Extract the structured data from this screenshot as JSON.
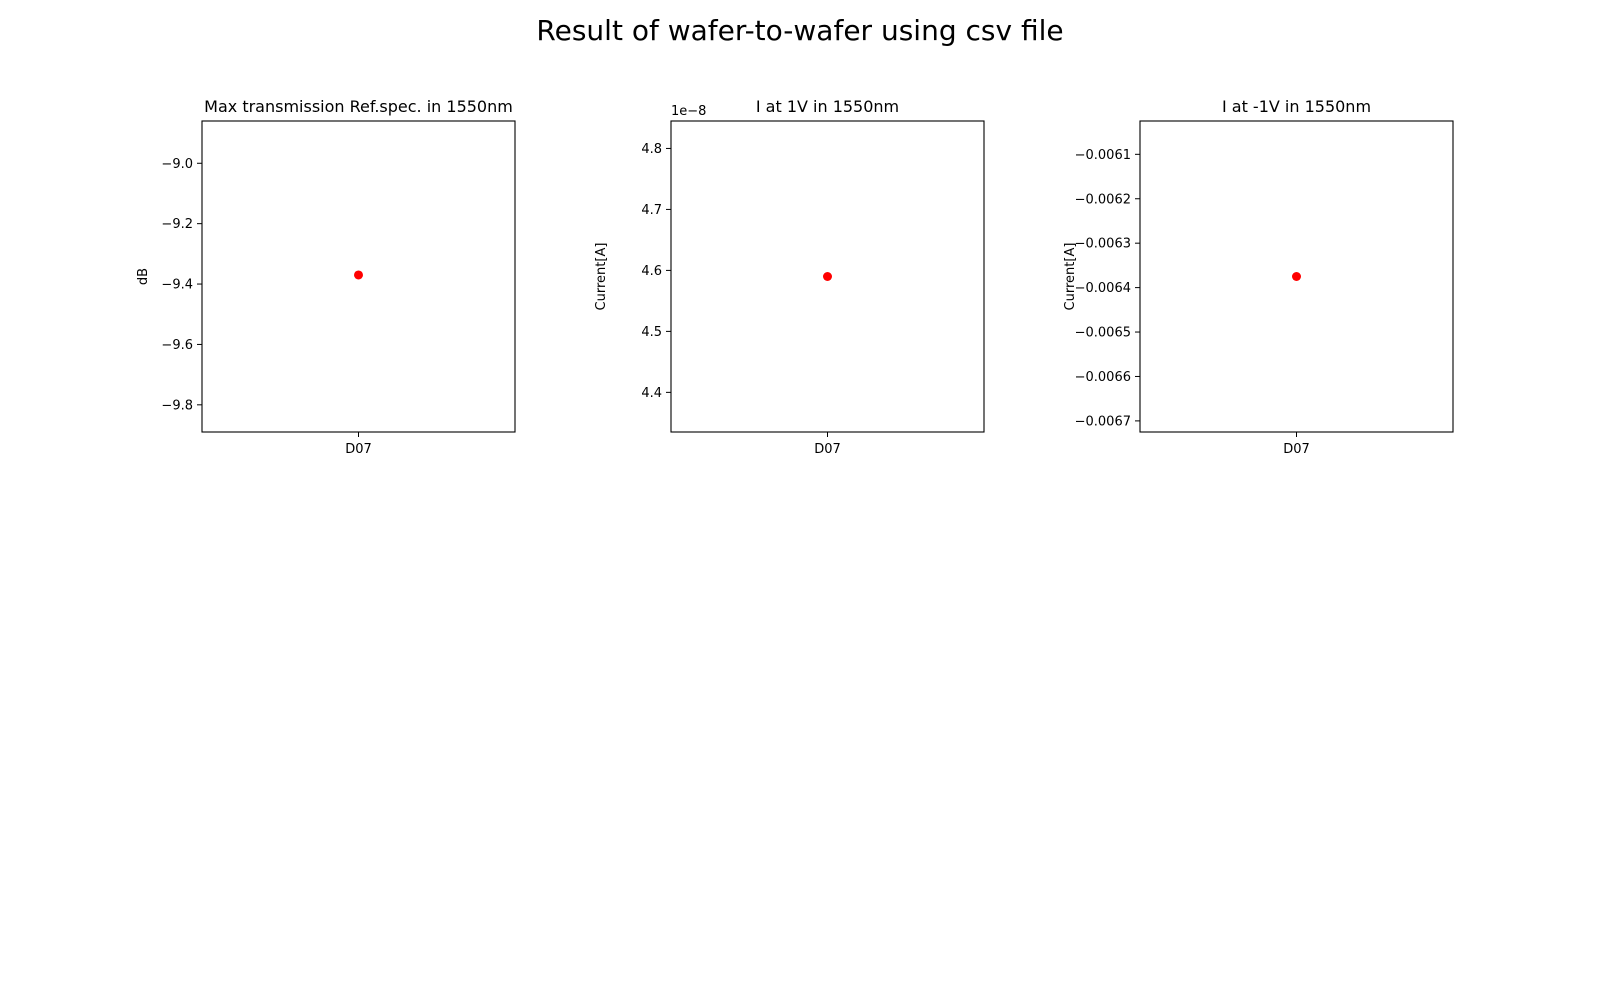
{
  "figure": {
    "title": "Result of wafer-to-wafer using csv file"
  },
  "chart_data": [
    {
      "type": "scatter",
      "title": "Max transmission Ref.spec. in 1550nm",
      "xlabel": "",
      "ylabel": "dB",
      "categories": [
        "D07"
      ],
      "series": [
        {
          "values": [
            -9.37
          ],
          "color": "#ff0000"
        }
      ],
      "ylim": [
        -9.89,
        -8.86
      ],
      "yticks": [
        -9.8,
        -9.6,
        -9.4,
        -9.2,
        -9.0
      ],
      "yticklabels": [
        "−9.8",
        "−9.6",
        "−9.4",
        "−9.2",
        "−9.0"
      ],
      "offset_text": "",
      "grid": false,
      "legend": "none"
    },
    {
      "type": "scatter",
      "title": "I at 1V in 1550nm",
      "xlabel": "",
      "ylabel": "Current[A]",
      "categories": [
        "D07"
      ],
      "series": [
        {
          "values": [
            4.59e-08
          ],
          "color": "#ff0000"
        }
      ],
      "ylim": [
        4.335e-08,
        4.845e-08
      ],
      "yticks": [
        4.4e-08,
        4.5e-08,
        4.6e-08,
        4.7e-08,
        4.8e-08
      ],
      "yticklabels": [
        "4.4",
        "4.5",
        "4.6",
        "4.7",
        "4.8"
      ],
      "offset_text": "1e−8",
      "grid": false,
      "legend": "none"
    },
    {
      "type": "scatter",
      "title": "I at -1V in 1550nm",
      "xlabel": "",
      "ylabel": "Current[A]",
      "categories": [
        "D07"
      ],
      "series": [
        {
          "values": [
            -0.006375
          ],
          "color": "#ff0000"
        }
      ],
      "ylim": [
        -0.006725,
        -0.006025
      ],
      "yticks": [
        -0.0067,
        -0.0066,
        -0.0065,
        -0.0064,
        -0.0063,
        -0.0062,
        -0.0061
      ],
      "yticklabels": [
        "−0.0067",
        "−0.0066",
        "−0.0065",
        "−0.0064",
        "−0.0063",
        "−0.0062",
        "−0.0061"
      ],
      "offset_text": "",
      "grid": false,
      "legend": "none"
    }
  ]
}
